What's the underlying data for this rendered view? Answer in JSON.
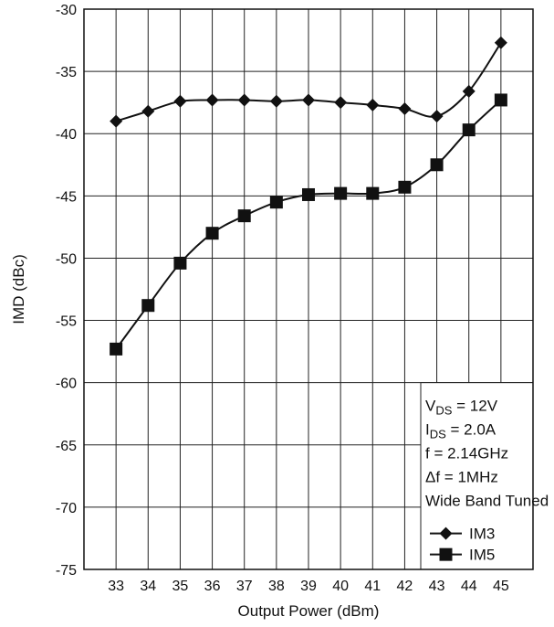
{
  "chart_data": {
    "type": "line",
    "xlabel": "Output Power (dBm)",
    "ylabel": "IMD (dBc)",
    "x": [
      33,
      34,
      35,
      36,
      37,
      38,
      39,
      40,
      41,
      42,
      43,
      44,
      45
    ],
    "xlim": [
      32,
      46
    ],
    "ylim": [
      -75,
      -30
    ],
    "y_ticks": [
      -30,
      -35,
      -40,
      -45,
      -50,
      -55,
      -60,
      -65,
      -70,
      -75
    ],
    "grid": true,
    "series": [
      {
        "name": "IM3",
        "marker": "diamond",
        "values": [
          -39.0,
          -38.2,
          -37.4,
          -37.3,
          -37.3,
          -37.4,
          -37.3,
          -37.5,
          -37.7,
          -38.0,
          -38.6,
          -36.6,
          -32.7
        ]
      },
      {
        "name": "IM5",
        "marker": "square",
        "values": [
          -57.3,
          -53.8,
          -50.4,
          -48.0,
          -46.6,
          -45.5,
          -44.9,
          -44.8,
          -44.8,
          -44.3,
          -42.5,
          -39.7,
          -37.3
        ]
      }
    ],
    "annotations": {
      "vds": {
        "main": "V",
        "sub": "DS",
        "rest": " = 12V"
      },
      "ids": {
        "main": "I",
        "sub": "DS",
        "rest": " = 2.0A"
      },
      "freq": "f = 2.14GHz",
      "delta_f": "Δf = 1MHz",
      "tuning": "Wide Band Tuned"
    },
    "legend_placement": "bottom-right",
    "colors": {
      "line": "#111111",
      "grid": "#222222",
      "background": "#ffffff"
    }
  }
}
